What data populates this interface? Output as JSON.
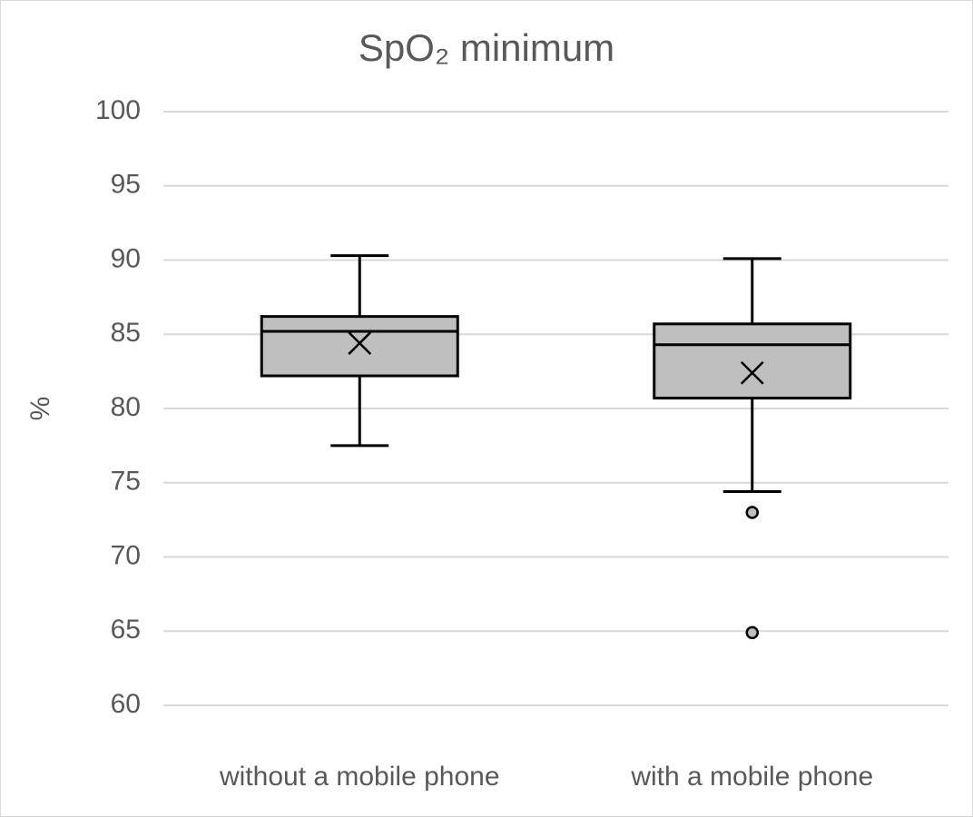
{
  "chart_data": {
    "type": "box",
    "title": "SpO₂ minimum",
    "y_label": "%",
    "categories": [
      "without a mobile phone",
      "with a mobile phone"
    ],
    "boxes": [
      {
        "min": 77.5,
        "q1": 82.2,
        "median": 85.2,
        "q3": 86.2,
        "max": 90.3,
        "mean": 84.4,
        "outliers": []
      },
      {
        "min": 74.4,
        "q1": 80.7,
        "median": 84.3,
        "q3": 85.7,
        "max": 90.1,
        "mean": 82.4,
        "outliers": [
          73,
          64.9
        ]
      }
    ],
    "color": "#bfbfbf",
    "ylim": [
      60,
      100
    ],
    "yticks": [
      60,
      65,
      70,
      75,
      80,
      85,
      90,
      95,
      100
    ],
    "grid": true
  }
}
